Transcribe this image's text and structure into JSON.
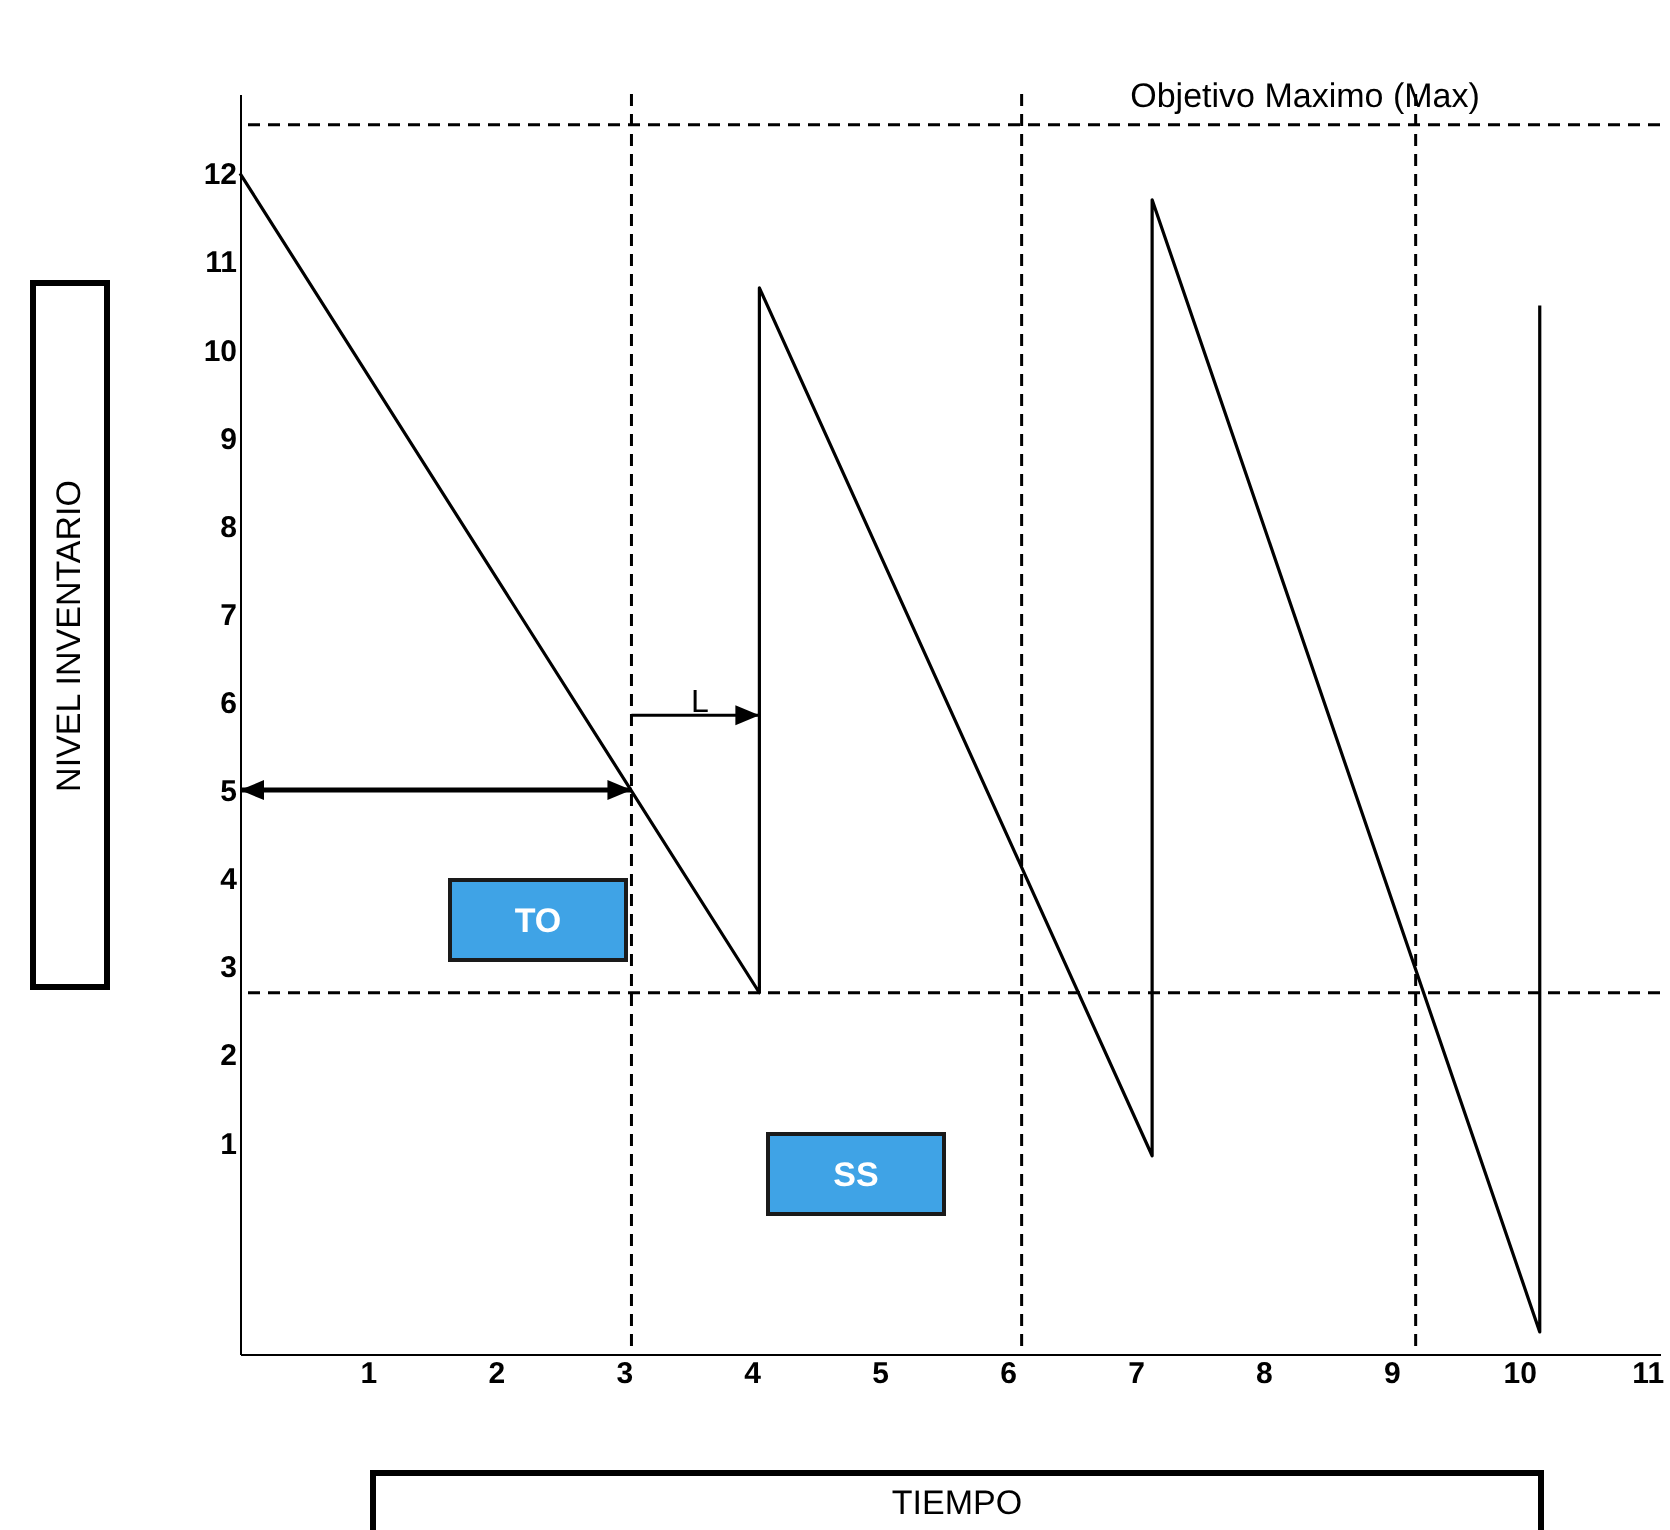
{
  "chart_data": {
    "type": "line",
    "xlabel": "TIEMPO",
    "ylabel": "NIVEL INVENTARIO",
    "series": [
      {
        "color": "#000000",
        "x": [
          0,
          4.06,
          4.06,
          7.13,
          7.13,
          10.16,
          10.16
        ],
        "values": [
          12,
          2.7,
          10.7,
          0.85,
          11.7,
          -1.15,
          10.5
        ]
      }
    ],
    "xlim": [
      0,
      11.1
    ],
    "ylim": [
      -1.4,
      12.9
    ],
    "xticks": [
      1,
      2,
      3,
      4,
      5,
      6,
      7,
      8,
      9,
      10,
      11
    ],
    "yticks": [
      1,
      2,
      3,
      4,
      5,
      6,
      7,
      8,
      9,
      10,
      11,
      12
    ],
    "ref_lines": [
      {
        "axis": "y",
        "value": 12.55,
        "label": "Objetivo Maximo (Max)",
        "line_style": "dashed"
      },
      {
        "axis": "y",
        "value": 2.7,
        "label": null,
        "line_style": "dashed"
      },
      {
        "axis": "x",
        "value": 3.06,
        "label": null,
        "line_style": "dashed"
      },
      {
        "axis": "x",
        "value": 6.11,
        "label": null,
        "line_style": "dashed"
      },
      {
        "axis": "x",
        "value": 9.19,
        "label": null,
        "line_style": "dashed"
      }
    ],
    "annotations": [
      "TO",
      "SS",
      "L"
    ]
  }
}
